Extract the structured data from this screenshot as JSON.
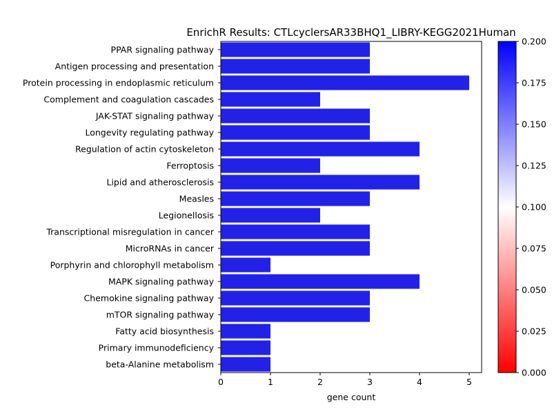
{
  "chart_data": {
    "type": "bar",
    "orientation": "horizontal",
    "title": "EnrichR Results: CTLcyclersAR33BHQ1_LIBRY-KEGG2021Human",
    "xlabel": "gene count",
    "ylabel": "",
    "xlim": [
      0,
      5.25
    ],
    "x_ticks": [
      0,
      1,
      2,
      3,
      4,
      5
    ],
    "grid": false,
    "bar_color": "#2222e6",
    "categories": [
      "PPAR signaling pathway",
      "Antigen processing and presentation",
      "Protein processing in endoplasmic reticulum",
      "Complement and coagulation cascades",
      "JAK-STAT signaling pathway",
      "Longevity regulating pathway",
      "Regulation of actin cytoskeleton",
      "Ferroptosis",
      "Lipid and atherosclerosis",
      "Measles",
      "Legionellosis",
      "Transcriptional misregulation in cancer",
      "MicroRNAs in cancer",
      "Porphyrin and chlorophyll metabolism",
      "MAPK signaling pathway",
      "Chemokine signaling pathway",
      "mTOR signaling pathway",
      "Fatty acid biosynthesis",
      "Primary immunodeficiency",
      "beta-Alanine metabolism"
    ],
    "values": [
      3,
      3,
      5,
      2,
      3,
      3,
      4,
      2,
      4,
      3,
      2,
      3,
      3,
      1,
      4,
      3,
      3,
      1,
      1,
      1
    ],
    "colorbar": {
      "range": [
        0.0,
        0.2
      ],
      "ticks": [
        "0.000",
        "0.025",
        "0.050",
        "0.075",
        "0.100",
        "0.125",
        "0.150",
        "0.175",
        "0.200"
      ],
      "colormap": [
        "#ff0000",
        "#ffffff",
        "#0000ff"
      ]
    }
  }
}
